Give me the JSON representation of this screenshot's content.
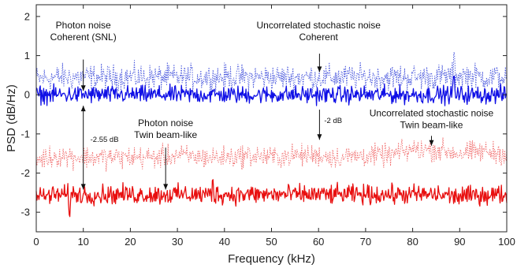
{
  "chart_data": {
    "type": "line",
    "xlabel": "Frequency (kHz)",
    "ylabel": "PSD (dB/Hz)",
    "xlim": [
      0,
      100
    ],
    "ylim": [
      -3.5,
      2.3
    ],
    "xticks": [
      0,
      10,
      20,
      30,
      40,
      50,
      60,
      70,
      80,
      90,
      100
    ],
    "yticks": [
      -3,
      -2,
      -1,
      0,
      1,
      2
    ],
    "grid": false,
    "series": [
      {
        "style": "dotted",
        "color": "#2f3fd8",
        "mean": 0.45,
        "x": [
          0,
          5,
          10,
          15,
          20,
          25,
          30,
          35,
          40,
          45,
          50,
          55,
          60,
          65,
          70,
          75,
          80,
          85,
          90,
          95,
          100
        ],
        "y": [
          0.4,
          0.45,
          0.45,
          0.45,
          0.45,
          0.45,
          0.45,
          0.45,
          0.45,
          0.45,
          0.45,
          0.45,
          0.45,
          0.45,
          0.45,
          0.45,
          0.45,
          0.45,
          0.5,
          0.45,
          0.45
        ]
      },
      {
        "style": "solid",
        "color": "#1010e6",
        "mean": 0.0,
        "x": [
          0,
          5,
          10,
          15,
          20,
          25,
          30,
          35,
          40,
          45,
          50,
          55,
          60,
          65,
          70,
          75,
          80,
          85,
          90,
          95,
          100
        ],
        "y": [
          0,
          0,
          0,
          0,
          0,
          0,
          0,
          0,
          0,
          0,
          0,
          0,
          0,
          0,
          0,
          0,
          0,
          0,
          0,
          0,
          0
        ]
      },
      {
        "style": "dotted",
        "color": "#ee5555",
        "mean": -1.55,
        "x": [
          0,
          5,
          10,
          15,
          20,
          25,
          30,
          35,
          40,
          45,
          50,
          55,
          60,
          65,
          70,
          75,
          80,
          85,
          90,
          95,
          100
        ],
        "y": [
          -1.65,
          -1.55,
          -1.6,
          -1.6,
          -1.6,
          -1.6,
          -1.55,
          -1.6,
          -1.6,
          -1.55,
          -1.6,
          -1.55,
          -1.55,
          -1.6,
          -1.55,
          -1.55,
          -1.4,
          -1.4,
          -1.5,
          -1.45,
          -1.5
        ]
      },
      {
        "style": "solid",
        "color": "#e81010",
        "mean": -2.55,
        "x": [
          0,
          5,
          10,
          15,
          20,
          25,
          30,
          35,
          40,
          45,
          50,
          55,
          60,
          65,
          70,
          75,
          80,
          85,
          90,
          95,
          100
        ],
        "y": [
          -2.6,
          -2.55,
          -2.55,
          -2.55,
          -2.55,
          -2.55,
          -2.55,
          -2.55,
          -2.55,
          -2.55,
          -2.55,
          -2.55,
          -2.55,
          -2.55,
          -2.55,
          -2.55,
          -2.55,
          -2.55,
          -2.6,
          -2.55,
          -2.55
        ]
      }
    ],
    "annotations": [
      {
        "key": "photon-coherent",
        "lines": [
          "Photon noise",
          "Coherent (SNL)"
        ],
        "x": 10,
        "y": 1.7
      },
      {
        "key": "stochastic-coherent",
        "lines": [
          "Uncorrelated stochastic noise",
          "Coherent"
        ],
        "x": 60,
        "y": 1.7
      },
      {
        "key": "photon-twin",
        "lines": [
          "Photon noise",
          "Twin beam-like"
        ],
        "x": 27.5,
        "y": -0.8
      },
      {
        "key": "stochastic-twin",
        "lines": [
          "Uncorrelated stochastic noise",
          "Twin beam-like"
        ],
        "x": 84,
        "y": -0.55
      }
    ],
    "diff_labels": [
      {
        "text": "-2.55 dB",
        "x": 11.5,
        "y": -1.2
      },
      {
        "text": "-2 dB",
        "x": 61.2,
        "y": -0.72
      }
    ]
  }
}
